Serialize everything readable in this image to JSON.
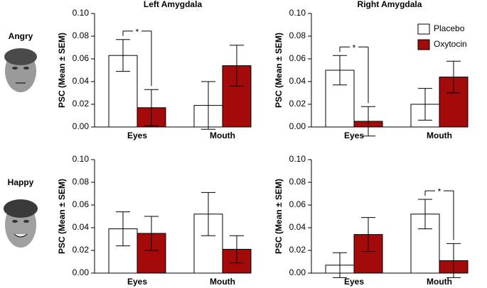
{
  "rows": [
    "Angry",
    "Happy"
  ],
  "chart_data": [
    {
      "type": "bar",
      "title": "Left Amygdala",
      "ylabel": "PSC (Mean ± SEM)",
      "categories": [
        "Eyes",
        "Mouth"
      ],
      "series": [
        {
          "name": "Placebo",
          "color": "#ffffff",
          "values": [
            0.063,
            0.019
          ],
          "errors": [
            0.014,
            0.021
          ]
        },
        {
          "name": "Oxytocin",
          "color": "#a50a0a",
          "values": [
            0.017,
            0.054
          ],
          "errors": [
            0.016,
            0.018
          ]
        }
      ],
      "ylim": [
        0,
        0.1
      ],
      "yticks": [
        {
          "value": 0,
          "label": "0.00"
        },
        {
          "value": 0.02,
          "label": "0.02"
        },
        {
          "value": 0.04,
          "label": "0.04"
        },
        {
          "value": 0.06,
          "label": "0.06"
        },
        {
          "value": 0.08,
          "label": "0.08"
        },
        {
          "value": 0.1,
          "label": "0.10"
        }
      ],
      "annotations": [
        {
          "text": "*",
          "category": "Eyes"
        }
      ]
    },
    {
      "type": "bar",
      "title": "Right Amygdala",
      "ylabel": "PSC (Mean ± SEM)",
      "categories": [
        "Eyes",
        "Mouth"
      ],
      "series": [
        {
          "name": "Placebo",
          "color": "#ffffff",
          "values": [
            0.05,
            0.02
          ],
          "errors": [
            0.013,
            0.014
          ]
        },
        {
          "name": "Oxytocin",
          "color": "#a50a0a",
          "values": [
            0.005,
            0.044
          ],
          "errors": [
            0.013,
            0.014
          ]
        }
      ],
      "ylim": [
        0,
        0.1
      ],
      "yticks": [
        {
          "value": 0,
          "label": "0.00"
        },
        {
          "value": 0.02,
          "label": "0.02"
        },
        {
          "value": 0.04,
          "label": "0.04"
        },
        {
          "value": 0.06,
          "label": "0.06"
        },
        {
          "value": 0.08,
          "label": "0.08"
        },
        {
          "value": 0.1,
          "label": "0.10"
        }
      ],
      "annotations": [
        {
          "text": "*",
          "category": "Eyes"
        }
      ],
      "legend": "upper right"
    },
    {
      "type": "bar",
      "ylabel": "PSC (Mean ± SEM)",
      "categories": [
        "Eyes",
        "Mouth"
      ],
      "series": [
        {
          "name": "Placebo",
          "color": "#ffffff",
          "values": [
            0.039,
            0.052
          ],
          "errors": [
            0.015,
            0.019
          ]
        },
        {
          "name": "Oxytocin",
          "color": "#a50a0a",
          "values": [
            0.035,
            0.021
          ],
          "errors": [
            0.015,
            0.012
          ]
        }
      ],
      "ylim": [
        0,
        0.1
      ],
      "yticks": [
        {
          "value": 0,
          "label": "0.00"
        },
        {
          "value": 0.02,
          "label": "0.02"
        },
        {
          "value": 0.04,
          "label": "0.04"
        },
        {
          "value": 0.06,
          "label": "0.06"
        },
        {
          "value": 0.08,
          "label": "0.08"
        },
        {
          "value": 0.1,
          "label": "0.10"
        }
      ]
    },
    {
      "type": "bar",
      "ylabel": "PSC (Mean ± SEM)",
      "categories": [
        "Eyes",
        "Mouth"
      ],
      "series": [
        {
          "name": "Placebo",
          "color": "#ffffff",
          "values": [
            0.007,
            0.052
          ],
          "errors": [
            0.011,
            0.013
          ]
        },
        {
          "name": "Oxytocin",
          "color": "#a50a0a",
          "values": [
            0.034,
            0.011
          ],
          "errors": [
            0.015,
            0.015
          ]
        }
      ],
      "ylim": [
        0,
        0.1
      ],
      "yticks": [
        {
          "value": 0,
          "label": "0.00"
        },
        {
          "value": 0.02,
          "label": "0.02"
        },
        {
          "value": 0.04,
          "label": "0.04"
        },
        {
          "value": 0.06,
          "label": "0.06"
        },
        {
          "value": 0.08,
          "label": "0.08"
        },
        {
          "value": 0.1,
          "label": "0.10"
        }
      ],
      "annotations": [
        {
          "text": "*",
          "category": "Mouth"
        }
      ]
    }
  ]
}
